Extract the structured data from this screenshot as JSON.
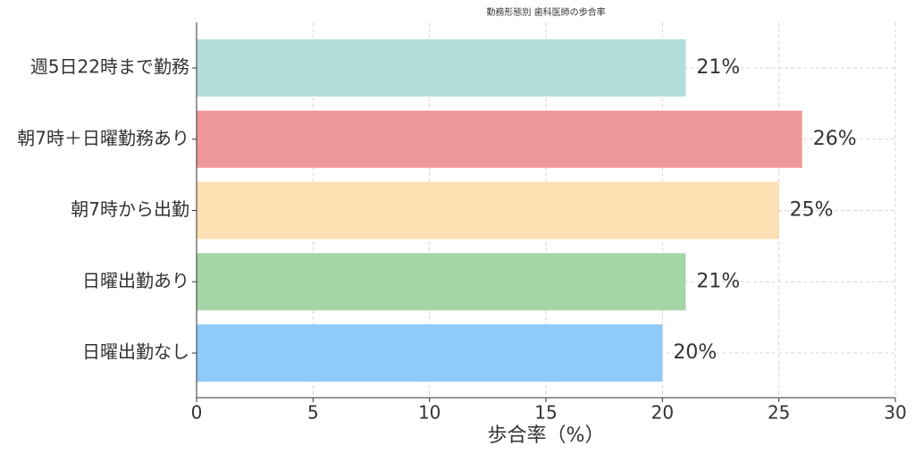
{
  "chart_data": {
    "type": "bar",
    "orientation": "horizontal",
    "title": "勤務形態別 歯科医師の歩合率",
    "x_label": "歩合率（%）",
    "categories": [
      "週5日22時まで勤務",
      "朝7時＋日曜勤務あり",
      "朝7時から出勤",
      "日曜出勤あり",
      "日曜出勤なし"
    ],
    "values": [
      21,
      26,
      25,
      21,
      20
    ],
    "value_labels": [
      "21%",
      "26%",
      "25%",
      "21%",
      "20%"
    ],
    "colors": [
      "#b2dfdb",
      "#ef9a9a",
      "#ffe0b2",
      "#a5d6a7",
      "#90caf9"
    ],
    "xlim": [
      0,
      30
    ],
    "xticks": [
      0,
      5,
      10,
      15,
      20,
      25,
      30
    ],
    "grid": true
  }
}
